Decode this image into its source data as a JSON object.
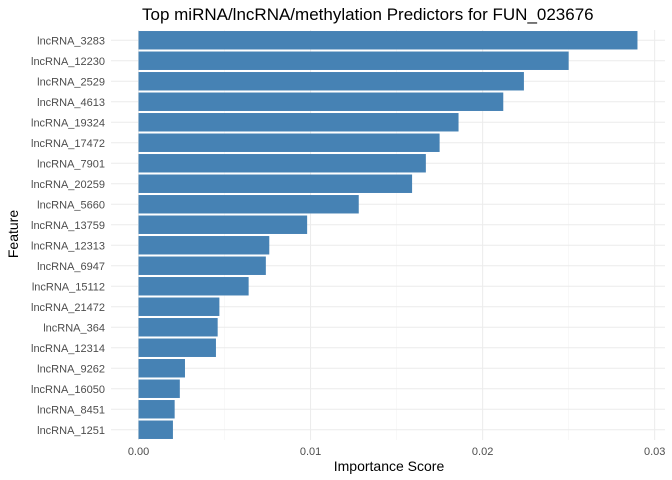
{
  "chart_data": {
    "type": "bar",
    "orientation": "horizontal",
    "title": "Top miRNA/lncRNA/methylation Predictors for FUN_023676",
    "xlabel": "Importance Score",
    "ylabel": "Feature",
    "xlim": [
      0,
      0.03
    ],
    "x_ticks": [
      0,
      0.01,
      0.02,
      0.03
    ],
    "x_tick_labels": [
      "0.00",
      "0.01",
      "0.02",
      "0.03"
    ],
    "grid": true,
    "bar_color": "#4682B4",
    "categories": [
      "lncRNA_3283",
      "lncRNA_12230",
      "lncRNA_2529",
      "lncRNA_4613",
      "lncRNA_19324",
      "lncRNA_17472",
      "lncRNA_7901",
      "lncRNA_20259",
      "lncRNA_5660",
      "lncRNA_13759",
      "lncRNA_12313",
      "lncRNA_6947",
      "lncRNA_15112",
      "lncRNA_21472",
      "lncRNA_364",
      "lncRNA_12314",
      "lncRNA_9262",
      "lncRNA_16050",
      "lncRNA_8451",
      "lncRNA_1251"
    ],
    "values": [
      0.029,
      0.025,
      0.0224,
      0.0212,
      0.0186,
      0.0175,
      0.0167,
      0.0159,
      0.0128,
      0.0098,
      0.0076,
      0.0074,
      0.0064,
      0.0047,
      0.0046,
      0.0045,
      0.0027,
      0.0024,
      0.0021,
      0.002
    ]
  }
}
